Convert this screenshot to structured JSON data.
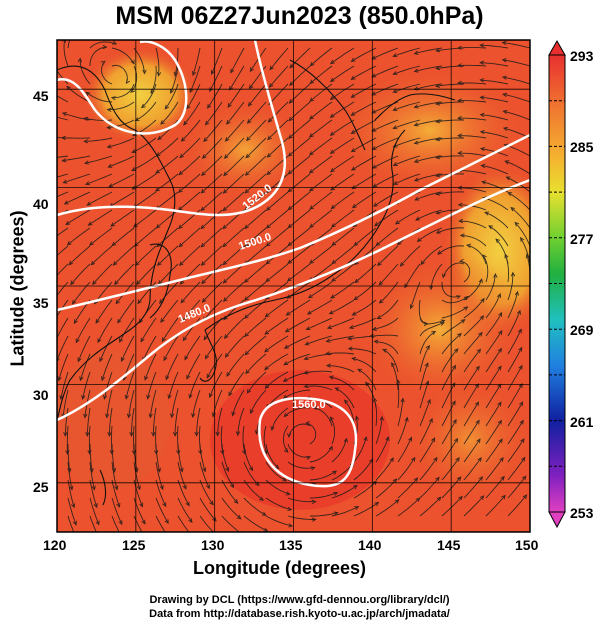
{
  "title": "MSM 06Z27Jun2023 (850.0hPa)",
  "x_axis": {
    "label": "Longitude (degrees)",
    "ticks": [
      "120",
      "125",
      "130",
      "135",
      "140",
      "145",
      "150"
    ]
  },
  "y_axis": {
    "label": "Latitude  (degrees)",
    "ticks": [
      "25",
      "30",
      "35",
      "40",
      "45"
    ]
  },
  "colorbar": {
    "ticks": [
      "293",
      "285",
      "277",
      "269",
      "261",
      "253"
    ],
    "min": 253,
    "max": 293
  },
  "contours": {
    "labels": [
      "1500.0",
      "1480.0",
      "1520.0",
      "1560.0"
    ],
    "color": "#ffffff"
  },
  "map": {
    "lon_range": [
      120,
      150
    ],
    "lat_range": [
      22.5,
      47.5
    ],
    "dominant_color": "#e8402a",
    "warm_color": "#f0a020",
    "cool_color": "#f7d035"
  },
  "footer": {
    "line1": "Drawing by DCL (https://www.gfd-dennou.org/library/dcl/)",
    "line2": "Data from http://database.rish.kyoto-u.ac.jp/arch/jmadata/"
  }
}
